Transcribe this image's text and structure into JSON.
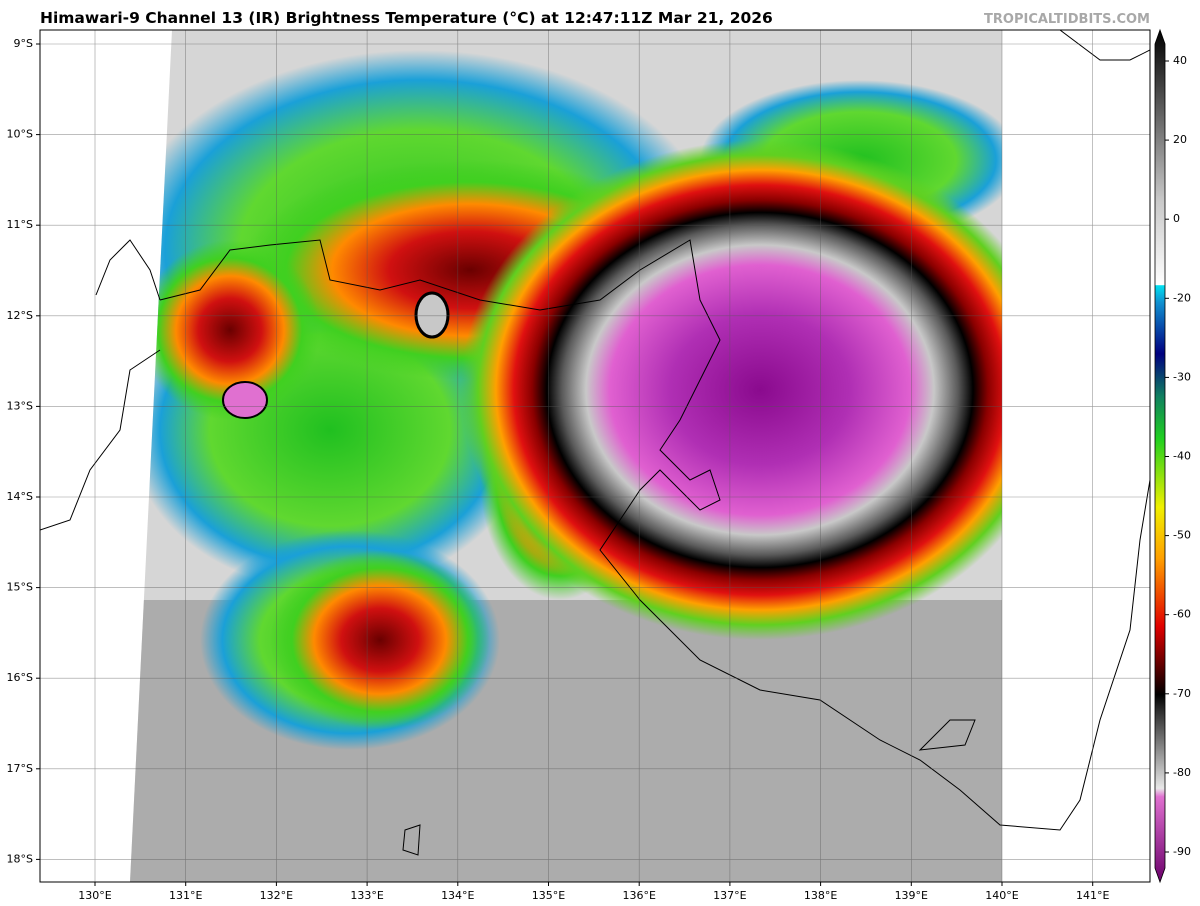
{
  "header": {
    "title": "Himawari-9 Channel 13 (IR) Brightness Temperature (°C) at 12:47:11Z Mar 21, 2026",
    "watermark": "TROPICALTIDBITS.COM"
  },
  "map": {
    "lon_labels": [
      "130°E",
      "131°E",
      "132°E",
      "133°E",
      "134°E",
      "135°E",
      "136°E",
      "137°E",
      "138°E",
      "139°E",
      "140°E",
      "141°E"
    ],
    "lat_labels": [
      "9°S",
      "10°S",
      "11°S",
      "12°S",
      "13°S",
      "14°S",
      "15°S",
      "16°S",
      "17°S",
      "18°S"
    ]
  },
  "colorbar": {
    "ticks": [
      40,
      20,
      0,
      -20,
      -30,
      -40,
      -50,
      -60,
      -70,
      -80,
      -90
    ]
  }
}
